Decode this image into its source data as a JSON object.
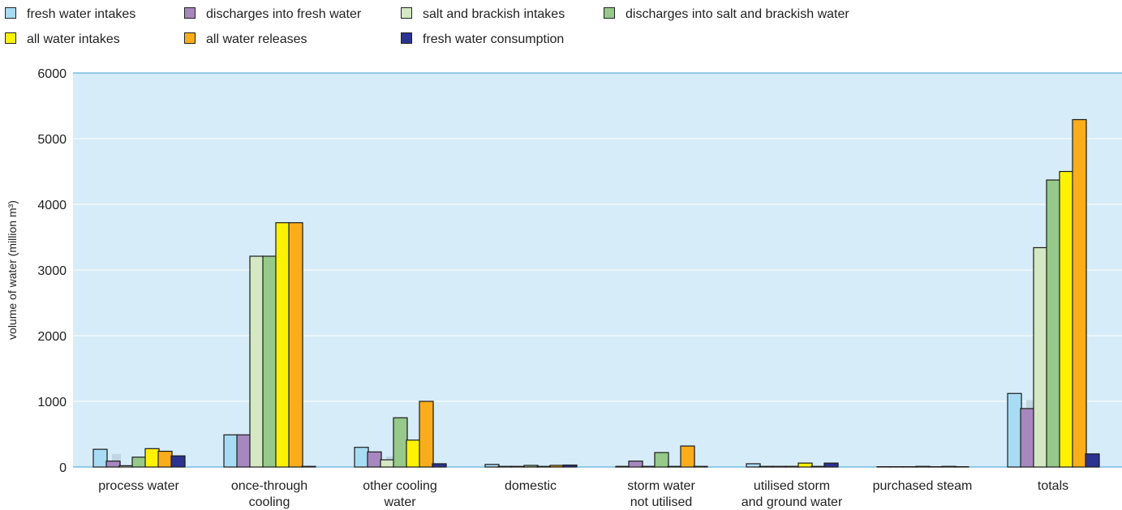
{
  "chart_data": {
    "type": "bar",
    "ylabel": "volume of water (million m³)",
    "ylim": [
      0,
      6000
    ],
    "yticks": [
      0,
      1000,
      2000,
      3000,
      4000,
      5000,
      6000
    ],
    "grid": true,
    "legend_position": "top",
    "categories": [
      [
        "process water"
      ],
      [
        "once-through",
        "cooling"
      ],
      [
        "other cooling",
        "water"
      ],
      [
        "domestic"
      ],
      [
        "storm water",
        "not utilised"
      ],
      [
        "utilised storm",
        "and ground water"
      ],
      [
        "purchased steam"
      ],
      [
        "totals"
      ]
    ],
    "series": [
      {
        "name": "fresh water intakes",
        "color": "#a8dcf5",
        "values": [
          270,
          490,
          300,
          40,
          10,
          50,
          5,
          1120
        ],
        "prior": [
          270,
          490,
          300,
          40,
          10,
          50,
          5,
          1120
        ]
      },
      {
        "name": "discharges into fresh water",
        "color": "#a688bf",
        "values": [
          90,
          490,
          230,
          10,
          90,
          10,
          5,
          890
        ],
        "prior": [
          200,
          490,
          230,
          10,
          90,
          10,
          5,
          1020
        ]
      },
      {
        "name": "salt and brackish intakes",
        "color": "#d3e8c3",
        "values": [
          20,
          3210,
          110,
          10,
          10,
          10,
          5,
          3340
        ],
        "prior": [
          20,
          3210,
          160,
          10,
          10,
          10,
          5,
          3340
        ]
      },
      {
        "name": "discharges into salt and brackish water",
        "color": "#96c98a",
        "values": [
          150,
          3210,
          750,
          25,
          220,
          10,
          10,
          4370
        ],
        "prior": [
          150,
          3210,
          700,
          25,
          140,
          10,
          10,
          4370
        ]
      },
      {
        "name": "all water intakes",
        "color": "#fff200",
        "values": [
          280,
          3720,
          410,
          10,
          10,
          60,
          5,
          4500
        ],
        "prior": [
          280,
          3720,
          410,
          10,
          10,
          60,
          5,
          4500
        ]
      },
      {
        "name": "all water releases",
        "color": "#f9ad1b",
        "values": [
          240,
          3720,
          1000,
          25,
          320,
          10,
          10,
          5290
        ],
        "prior": [
          240,
          3650,
          940,
          25,
          250,
          10,
          10,
          5200
        ]
      },
      {
        "name": "fresh water consumption",
        "color": "#2b3290",
        "values": [
          170,
          10,
          50,
          30,
          10,
          60,
          5,
          200
        ],
        "prior": [
          100,
          10,
          50,
          30,
          10,
          60,
          5,
          130
        ]
      }
    ]
  }
}
